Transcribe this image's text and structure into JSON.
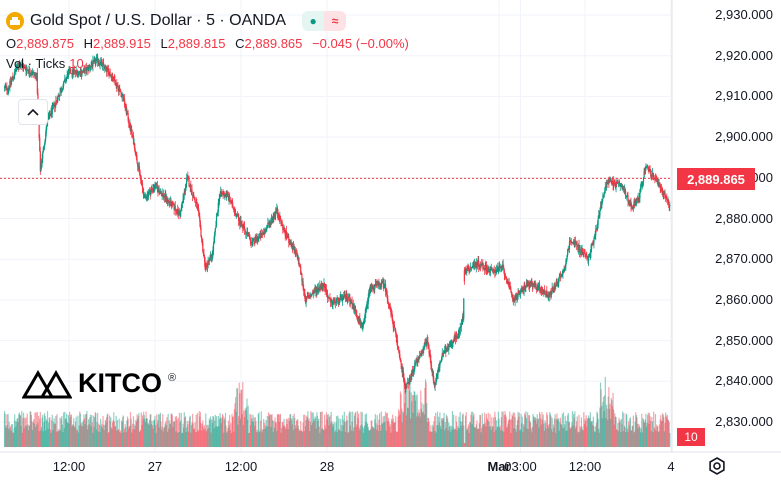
{
  "legend": {
    "symbol_title": "Gold Spot / U.S. Dollar · 5 · OANDA",
    "ohlc": {
      "o_label": "O",
      "o_value": "2,889.875",
      "h_label": "H",
      "h_value": "2,889.915",
      "l_label": "L",
      "l_value": "2,889.815",
      "c_label": "C",
      "c_value": "2,889.865",
      "change": "−0.045 (−0.00%)"
    },
    "volume_label": "Vol · Ticks",
    "volume_value": "10"
  },
  "last_price_label": "2,889.865",
  "last_volume_label": "10",
  "logo_text": "KITCO",
  "colors": {
    "up": "#089981",
    "down": "#f23645",
    "grid": "#f0f3fa",
    "last_line": "#f23645"
  },
  "icons": [
    "gold-coin-icon",
    "status-dot-icon",
    "compare-icon",
    "chevron-up-icon",
    "settings-gear-icon"
  ],
  "chart_data": {
    "type": "candlestick",
    "title": "Gold Spot / U.S. Dollar · 5 · OANDA",
    "yticks": [
      "2,930.000",
      "2,920.000",
      "2,910.000",
      "2,900.000",
      "2,890.000",
      "2,880.000",
      "2,870.000",
      "2,860.000",
      "2,850.000",
      "2,840.000",
      "2,830.000"
    ],
    "ytick_values": [
      2930,
      2920,
      2910,
      2900,
      2890,
      2880,
      2870,
      2860,
      2850,
      2840,
      2830
    ],
    "ylim": [
      2825,
      2933
    ],
    "xticks": [
      "12:00",
      "27",
      "12:00",
      "28",
      "Mar",
      "03:00",
      "12:00",
      "4"
    ],
    "xtick_hours": [
      12,
      24,
      36,
      48,
      72,
      75,
      84,
      96
    ],
    "xlim_hours": [
      3,
      101.5
    ],
    "last_close": 2889.865,
    "price_path_hours": [
      3.5,
      5,
      7.5,
      8,
      9,
      12,
      14,
      16,
      18,
      19.5,
      21,
      22.5,
      24,
      26,
      27.5,
      28.5,
      30,
      31,
      32,
      33,
      34,
      36.5,
      37.5,
      39,
      41,
      42,
      44,
      45,
      47.5,
      48.5,
      51,
      53,
      54,
      56,
      57.5,
      59,
      60.5,
      62,
      63,
      64,
      65.5,
      66.5,
      67,
      67.2,
      69,
      71,
      72.5,
      74,
      76,
      77.5,
      79,
      81,
      82,
      83,
      84.5,
      85.5,
      87,
      89,
      90.5,
      91.5,
      92.5,
      94,
      96,
      97.5,
      98.5,
      99.5
    ],
    "price_path_values": [
      2912,
      2918,
      2915,
      2892,
      2904,
      2916,
      2916,
      2919,
      2915,
      2910,
      2899,
      2885,
      2888,
      2884,
      2881,
      2890,
      2882,
      2868,
      2871,
      2886,
      2886,
      2877,
      2874,
      2876,
      2882,
      2877,
      2870,
      2860,
      2864,
      2859,
      2861,
      2853,
      2863,
      2864,
      2852,
      2838,
      2845,
      2850,
      2839,
      2846,
      2850,
      2852,
      2856,
      2867,
      2869,
      2867,
      2868,
      2860,
      2864,
      2863,
      2861,
      2867,
      2875,
      2873,
      2870,
      2877,
      2889,
      2888,
      2883,
      2885,
      2893,
      2889,
      2883,
      2887,
      2892,
      2889.865
    ]
  }
}
